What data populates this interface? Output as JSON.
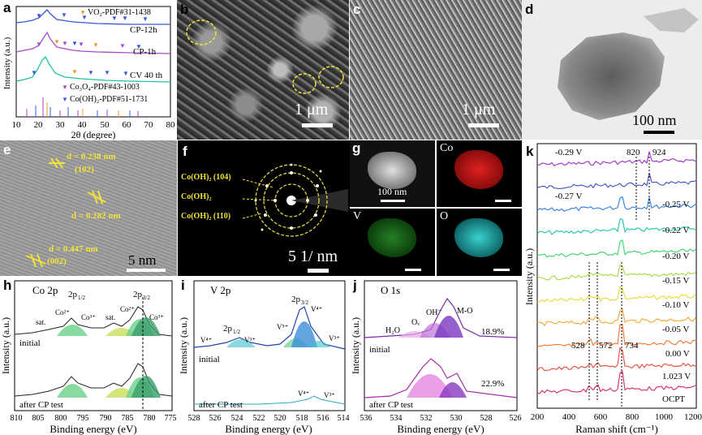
{
  "panels": {
    "a": {
      "label": "a",
      "xlabel": "2θ (degree)",
      "ylabel": "Intensity (a.u.)",
      "xticks": [
        "10",
        "20",
        "30",
        "40",
        "50",
        "60",
        "70",
        "80"
      ],
      "legend_vo2": "VO₂-PDF#31-1438",
      "legend_co3o4": "Co₃O₄-PDF#43-1003",
      "legend_coh": "Co(OH)₂-PDF#51-1731",
      "curves": [
        "CP-12h",
        "CP-1h",
        "CV 40 th"
      ],
      "colors": {
        "cp12": "#3a55d4",
        "cp1": "#a64cc6",
        "cv40": "#22c2a0",
        "vo2": "#f29a2e",
        "co3o4": "#b040c0",
        "coh": "#3a5fd8"
      }
    },
    "b": {
      "label": "b",
      "scale": "1 μm"
    },
    "c": {
      "label": "c",
      "scale": "1 μm"
    },
    "d": {
      "label": "d",
      "scale": "100 nm"
    },
    "e": {
      "label": "e",
      "d1": "d = 0.238 nm",
      "h1": "(102)",
      "d2": "d = 0.282 nm",
      "d3": "d = 0.447 nm",
      "h3": "(002)",
      "scale": "5 nm"
    },
    "f": {
      "label": "f",
      "ring1": "Co(OH)₂ (104)",
      "ring2": "Co(OH)₂",
      "ring3": "Co(OH)₂ (110)",
      "scale": "5 1/ nm"
    },
    "g": {
      "label": "g",
      "scale": "100 nm",
      "co": "Co",
      "v": "V",
      "o": "O"
    },
    "h": {
      "label": "h",
      "title": "Co 2p",
      "xlabel": "Binding energy (eV)",
      "ylabel": "Intensity (a.u.)",
      "xticks": [
        "810",
        "805",
        "800",
        "795",
        "790",
        "785",
        "780",
        "775"
      ],
      "peaks": {
        "p12": "2p",
        "p12sub": "1/2",
        "p32": "2p",
        "p32sub": "3/2",
        "co2a": "Co²⁺",
        "co3a": "Co³⁺",
        "sat1": "sat.",
        "sat2": "sat.",
        "co2b": "Co²⁺",
        "co3b": "Co³⁺"
      },
      "initial": "initial",
      "after": "after CP test"
    },
    "i": {
      "label": "i",
      "title": "V 2p",
      "xlabel": "Binding energy (eV)",
      "ylabel": "Intensity (a.u.)",
      "xticks": [
        "528",
        "526",
        "524",
        "522",
        "520",
        "518",
        "516",
        "514"
      ],
      "peaks": {
        "p12": "2p",
        "p12sub": "1/2",
        "p32": "2p",
        "p32sub": "3/2",
        "v4a": "V⁴⁺",
        "v3a": "V³⁺",
        "v5": "V⁵⁺",
        "v4b": "V⁴⁺",
        "v3b": "V³⁺",
        "v4c": "V⁴⁺",
        "v3c": "V³⁺"
      },
      "initial": "initial",
      "after": "after CP test"
    },
    "j": {
      "label": "j",
      "title": "O 1s",
      "xlabel": "Binding energy (eV)",
      "ylabel": "Intensity (a.u.)",
      "xticks": [
        "536",
        "534",
        "532",
        "530",
        "528",
        "526"
      ],
      "peaks": {
        "h2o": "H₂O",
        "ov": "Oᵥ",
        "oh": "OH⁻",
        "mo": "M-O"
      },
      "pct1": "18.9%",
      "pct2": "22.9%",
      "initial": "initial",
      "after": "after CP test"
    },
    "k": {
      "label": "k",
      "xlabel": "Raman shift (cm⁻¹)",
      "ylabel": "Intensity (a.u.)",
      "xticks": [
        "200",
        "400",
        "600",
        "800",
        "1000",
        "1200"
      ],
      "peak_labels": [
        "820",
        "924",
        "528",
        "572",
        "734"
      ],
      "curves": [
        {
          "name": "-0.29 V",
          "color": "#9b2fc6"
        },
        {
          "name": "-0.27 V",
          "color": "#3c52c9"
        },
        {
          "name": "-0.25 V",
          "color": "#2f7fe0"
        },
        {
          "name": "-0.22 V",
          "color": "#1fc4a8"
        },
        {
          "name": "-0.20 V",
          "color": "#3ecf6a"
        },
        {
          "name": "-0.15 V",
          "color": "#a6d93c"
        },
        {
          "name": "-0.10 V",
          "color": "#e8d92e"
        },
        {
          "name": "-0.05 V",
          "color": "#f2a72a"
        },
        {
          "name": "0.00 V",
          "color": "#f0732a"
        },
        {
          "name": "1.023 V",
          "color": "#e84c3a"
        },
        {
          "name": "OCPT",
          "color": "#d9276a"
        }
      ]
    }
  }
}
